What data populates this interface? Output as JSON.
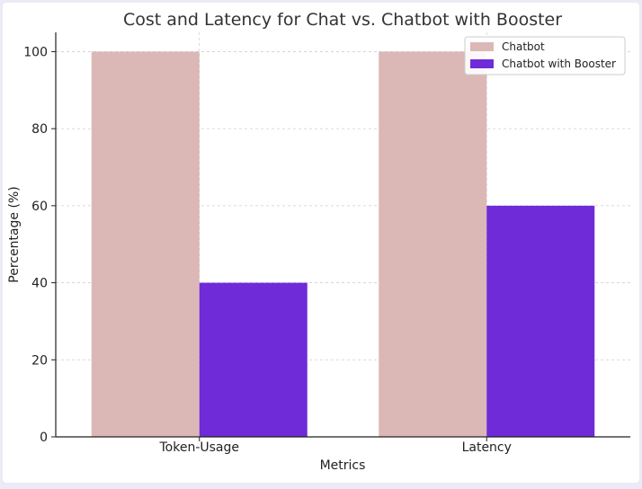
{
  "chart_data": {
    "type": "bar",
    "title": "Cost and Latency for Chat vs. Chatbot with Booster",
    "xlabel": "Metrics",
    "ylabel": "Percentage (%)",
    "categories": [
      "Token-Usage",
      "Latency"
    ],
    "series": [
      {
        "name": "Chatbot",
        "values": [
          100,
          100
        ],
        "color": "#dbb8b6"
      },
      {
        "name": "Chatbot with Booster",
        "values": [
          40,
          60
        ],
        "color": "#6f2bd8"
      }
    ],
    "ylim": [
      0,
      105
    ],
    "yticks": [
      0,
      20,
      40,
      60,
      80,
      100
    ],
    "grid": true,
    "legend": {
      "position": "top-right"
    }
  }
}
